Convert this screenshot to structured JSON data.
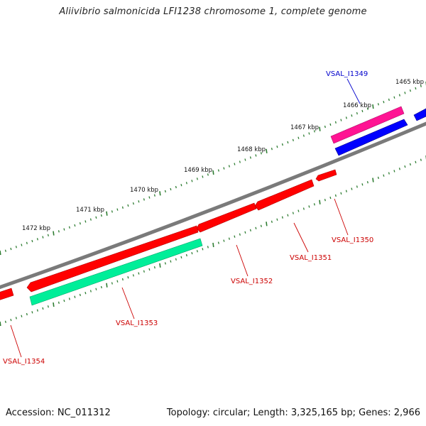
{
  "title": "Aliivibrio salmonicida LFI1238 chromosome 1, complete genome",
  "footer": {
    "accession": "Accession: NC_011312",
    "summary": "Topology: circular; Length: 3,325,165 bp; Genes: 2,966"
  },
  "scale_labels": [
    "1465 kbp",
    "1466 kbp",
    "1467 kbp",
    "1468 kbp",
    "1469 kbp",
    "1470 kbp",
    "1471 kbp",
    "1472 kbp"
  ],
  "gene_labels": [
    {
      "name": "VSAL_I1349",
      "color": "#0000cc"
    },
    {
      "name": "VSAL_I1350",
      "color": "#cc0000"
    },
    {
      "name": "VSAL_I1351",
      "color": "#cc0000"
    },
    {
      "name": "VSAL_I1352",
      "color": "#cc0000"
    },
    {
      "name": "VSAL_I1353",
      "color": "#cc0000"
    },
    {
      "name": "VSAL_I1354",
      "color": "#cc0000"
    }
  ],
  "colors": {
    "backbone": "#7a7a7a",
    "cds_forward": "#ff0000",
    "cds_reverse": "#ff0000",
    "rrna": "#ff1493",
    "trna": "#0000ff",
    "misc": "#00ee99",
    "scale_ticks": "#2e7d32"
  }
}
